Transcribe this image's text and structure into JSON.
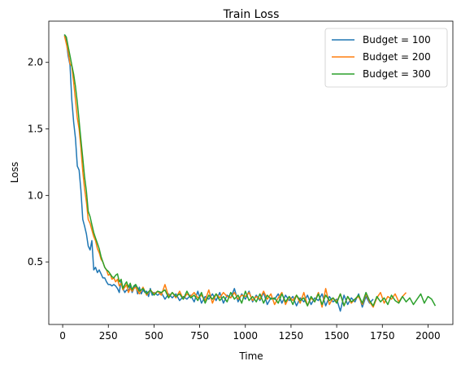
{
  "chart_data": {
    "type": "line",
    "title": "Train Loss",
    "xlabel": "Time",
    "ylabel": "Loss",
    "xlim": [
      -76,
      2136
    ],
    "ylim": [
      0.03,
      2.31
    ],
    "xticks": [
      0,
      250,
      500,
      750,
      1000,
      1250,
      1500,
      1750,
      2000
    ],
    "yticks": [
      0.5,
      1.0,
      1.5,
      2.0
    ],
    "ytick_labels": [
      "0.5",
      "1.0",
      "1.5",
      "2.0"
    ],
    "grid": false,
    "legend": "top-right",
    "series": [
      {
        "name": "Budget = 100",
        "color": "#1f77b4",
        "x": [
          10,
          20,
          30,
          40,
          50,
          60,
          70,
          80,
          90,
          100,
          110,
          120,
          130,
          140,
          150,
          160,
          170,
          180,
          190,
          200,
          210,
          220,
          230,
          240,
          250,
          260,
          270,
          280,
          290,
          300,
          310,
          320,
          330,
          340,
          350,
          360,
          370,
          380,
          390,
          400,
          410,
          420,
          430,
          440,
          450,
          460,
          470,
          480,
          490,
          500,
          520,
          540,
          560,
          580,
          600,
          620,
          640,
          660,
          680,
          700,
          720,
          740,
          760,
          780,
          800,
          820,
          840,
          860,
          880,
          900,
          920,
          940,
          960,
          980,
          1000,
          1020,
          1040,
          1060,
          1080,
          1100,
          1120,
          1140,
          1160,
          1180,
          1200,
          1220,
          1240,
          1260,
          1280,
          1300,
          1320,
          1340,
          1360,
          1380,
          1400,
          1420,
          1440,
          1460,
          1480,
          1500,
          1520,
          1540,
          1560,
          1580,
          1600,
          1620,
          1640,
          1660,
          1680,
          1700
        ],
        "y": [
          2.21,
          2.16,
          2.05,
          1.98,
          1.72,
          1.55,
          1.43,
          1.22,
          1.19,
          1.04,
          0.82,
          0.77,
          0.71,
          0.62,
          0.59,
          0.66,
          0.44,
          0.46,
          0.42,
          0.44,
          0.41,
          0.38,
          0.38,
          0.35,
          0.33,
          0.33,
          0.32,
          0.33,
          0.32,
          0.3,
          0.27,
          0.36,
          0.3,
          0.27,
          0.29,
          0.28,
          0.32,
          0.27,
          0.3,
          0.33,
          0.26,
          0.31,
          0.26,
          0.29,
          0.27,
          0.28,
          0.24,
          0.3,
          0.25,
          0.27,
          0.25,
          0.27,
          0.22,
          0.26,
          0.23,
          0.26,
          0.21,
          0.24,
          0.22,
          0.25,
          0.2,
          0.28,
          0.19,
          0.24,
          0.22,
          0.26,
          0.21,
          0.27,
          0.19,
          0.25,
          0.23,
          0.3,
          0.2,
          0.26,
          0.22,
          0.28,
          0.2,
          0.25,
          0.21,
          0.27,
          0.18,
          0.23,
          0.22,
          0.26,
          0.19,
          0.25,
          0.21,
          0.24,
          0.17,
          0.23,
          0.2,
          0.25,
          0.18,
          0.23,
          0.21,
          0.26,
          0.17,
          0.24,
          0.2,
          0.22,
          0.13,
          0.25,
          0.18,
          0.23,
          0.2,
          0.26,
          0.16,
          0.24,
          0.19,
          0.22
        ]
      },
      {
        "name": "Budget = 200",
        "color": "#ff7f0e",
        "x": [
          10,
          20,
          30,
          40,
          50,
          60,
          70,
          80,
          90,
          100,
          110,
          120,
          130,
          140,
          150,
          160,
          170,
          180,
          190,
          200,
          210,
          220,
          230,
          240,
          250,
          260,
          270,
          280,
          290,
          300,
          310,
          320,
          330,
          340,
          350,
          360,
          370,
          380,
          390,
          400,
          420,
          440,
          460,
          480,
          500,
          520,
          540,
          560,
          580,
          600,
          620,
          640,
          660,
          680,
          700,
          720,
          740,
          760,
          780,
          800,
          820,
          840,
          860,
          880,
          900,
          920,
          940,
          960,
          980,
          1000,
          1020,
          1040,
          1060,
          1080,
          1100,
          1120,
          1140,
          1160,
          1180,
          1200,
          1220,
          1240,
          1260,
          1280,
          1300,
          1320,
          1340,
          1360,
          1380,
          1400,
          1420,
          1440,
          1460,
          1480,
          1500,
          1520,
          1540,
          1560,
          1580,
          1600,
          1620,
          1640,
          1660,
          1680,
          1700,
          1720,
          1740,
          1760,
          1780,
          1800,
          1820,
          1840,
          1860,
          1880
        ],
        "y": [
          2.2,
          2.14,
          2.08,
          1.99,
          1.97,
          1.85,
          1.72,
          1.58,
          1.5,
          1.36,
          1.18,
          1.05,
          0.95,
          0.82,
          0.79,
          0.74,
          0.69,
          0.66,
          0.6,
          0.57,
          0.52,
          0.5,
          0.46,
          0.44,
          0.4,
          0.41,
          0.37,
          0.38,
          0.35,
          0.37,
          0.32,
          0.34,
          0.29,
          0.31,
          0.33,
          0.27,
          0.3,
          0.28,
          0.3,
          0.31,
          0.26,
          0.31,
          0.25,
          0.29,
          0.26,
          0.28,
          0.25,
          0.33,
          0.24,
          0.27,
          0.23,
          0.28,
          0.22,
          0.26,
          0.24,
          0.27,
          0.23,
          0.25,
          0.21,
          0.29,
          0.19,
          0.26,
          0.23,
          0.27,
          0.24,
          0.23,
          0.27,
          0.22,
          0.25,
          0.24,
          0.27,
          0.21,
          0.24,
          0.22,
          0.28,
          0.22,
          0.26,
          0.18,
          0.23,
          0.27,
          0.18,
          0.24,
          0.21,
          0.25,
          0.19,
          0.27,
          0.17,
          0.23,
          0.2,
          0.27,
          0.16,
          0.3,
          0.18,
          0.23,
          0.2,
          0.26,
          0.17,
          0.24,
          0.19,
          0.22,
          0.24,
          0.18,
          0.26,
          0.2,
          0.16,
          0.23,
          0.27,
          0.19,
          0.24,
          0.22,
          0.26,
          0.2,
          0.24,
          0.27
        ]
      },
      {
        "name": "Budget = 300",
        "color": "#2ca02c",
        "x": [
          10,
          20,
          30,
          40,
          50,
          60,
          70,
          80,
          90,
          100,
          110,
          120,
          130,
          140,
          150,
          160,
          170,
          180,
          190,
          200,
          210,
          220,
          230,
          240,
          250,
          260,
          270,
          280,
          290,
          300,
          310,
          320,
          330,
          340,
          350,
          360,
          370,
          380,
          390,
          400,
          420,
          440,
          460,
          480,
          500,
          520,
          540,
          560,
          580,
          600,
          620,
          640,
          660,
          680,
          700,
          720,
          740,
          760,
          780,
          800,
          820,
          840,
          860,
          880,
          900,
          920,
          940,
          960,
          980,
          1000,
          1020,
          1040,
          1060,
          1080,
          1100,
          1120,
          1140,
          1160,
          1180,
          1200,
          1220,
          1240,
          1260,
          1280,
          1300,
          1320,
          1340,
          1360,
          1380,
          1400,
          1420,
          1440,
          1460,
          1480,
          1500,
          1520,
          1540,
          1560,
          1580,
          1600,
          1620,
          1640,
          1660,
          1680,
          1700,
          1720,
          1740,
          1760,
          1780,
          1800,
          1820,
          1840,
          1860,
          1880,
          1900,
          1920,
          1940,
          1960,
          1980,
          2000,
          2020,
          2040
        ],
        "y": [
          2.21,
          2.19,
          2.12,
          2.05,
          1.98,
          1.91,
          1.82,
          1.7,
          1.56,
          1.42,
          1.28,
          1.14,
          1.03,
          0.88,
          0.84,
          0.78,
          0.72,
          0.68,
          0.64,
          0.6,
          0.54,
          0.5,
          0.46,
          0.44,
          0.43,
          0.41,
          0.39,
          0.38,
          0.4,
          0.41,
          0.35,
          0.37,
          0.3,
          0.33,
          0.35,
          0.31,
          0.34,
          0.29,
          0.32,
          0.33,
          0.28,
          0.3,
          0.26,
          0.29,
          0.25,
          0.28,
          0.27,
          0.29,
          0.23,
          0.27,
          0.24,
          0.26,
          0.22,
          0.28,
          0.23,
          0.25,
          0.21,
          0.27,
          0.19,
          0.25,
          0.22,
          0.26,
          0.21,
          0.24,
          0.2,
          0.27,
          0.22,
          0.25,
          0.19,
          0.28,
          0.21,
          0.24,
          0.2,
          0.26,
          0.19,
          0.25,
          0.22,
          0.23,
          0.19,
          0.26,
          0.2,
          0.24,
          0.18,
          0.25,
          0.21,
          0.23,
          0.17,
          0.24,
          0.2,
          0.26,
          0.18,
          0.25,
          0.21,
          0.23,
          0.19,
          0.26,
          0.17,
          0.24,
          0.2,
          0.22,
          0.25,
          0.19,
          0.27,
          0.21,
          0.17,
          0.24,
          0.2,
          0.23,
          0.18,
          0.25,
          0.21,
          0.19,
          0.24,
          0.2,
          0.23,
          0.18,
          0.22,
          0.26,
          0.19,
          0.24,
          0.22,
          0.17
        ]
      }
    ]
  }
}
